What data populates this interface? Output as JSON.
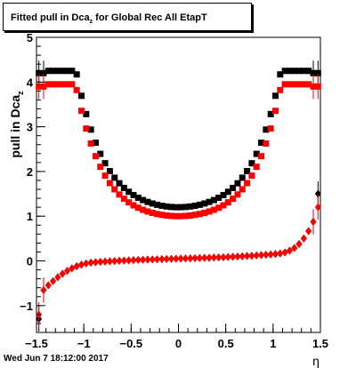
{
  "chart_data": {
    "type": "scatter",
    "title_main": "Fitted pull in Dca",
    "title_sub": "z",
    "title_rest": " for Global Rec All EtapT",
    "ylabel_main": "pull in Dca",
    "ylabel_sub": "z",
    "xlabel": "η",
    "xlim": [
      -1.5,
      1.5
    ],
    "ylim": [
      -1.6,
      5.0
    ],
    "xticks": [
      -1.5,
      -1,
      -0.5,
      0,
      0.5,
      1,
      1.5
    ],
    "xtick_labels": [
      "−1.5",
      "−1",
      "−0.5",
      "0",
      "0.5",
      "1",
      "1.5"
    ],
    "yticks": [
      -1,
      0,
      1,
      2,
      3,
      4,
      5
    ],
    "ytick_labels": [
      "−1",
      "0",
      "1",
      "2",
      "3",
      "4",
      "5"
    ],
    "grid": false,
    "series": [
      {
        "marker": "square",
        "color": "#000000",
        "shape": "width",
        "a": 1.2,
        "b": 1.08,
        "p": 5,
        "ends": 4.2
      },
      {
        "marker": "square",
        "color": "#ff0000",
        "shape": "width",
        "a": 1.0,
        "b": 0.95,
        "p": 5,
        "ends": 3.9
      },
      {
        "marker": "diamond",
        "color": "#000000",
        "shape": "mean",
        "ends_left": -1.3,
        "ends_right": 1.5
      },
      {
        "marker": "diamond",
        "color": "#ff0000",
        "shape": "mean",
        "ends_left": -1.2,
        "ends_right": 1.2
      }
    ]
  },
  "footer": {
    "date": "Wed Jun  7 18:12:00 2017"
  }
}
